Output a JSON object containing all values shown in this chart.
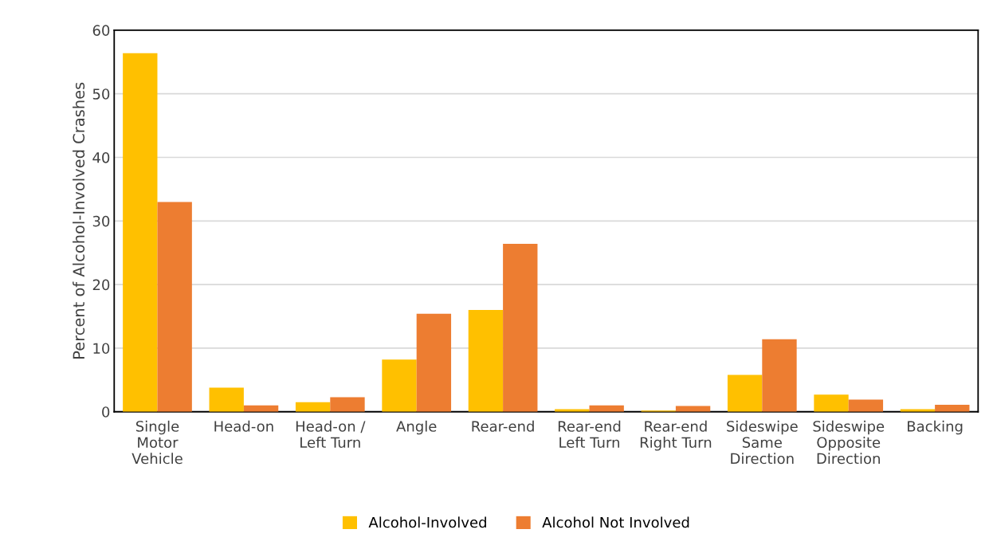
{
  "chart_data": {
    "type": "bar",
    "ylabel": "Percent of Alcohol-Involved Crashes",
    "categories": [
      "Single\nMotor\nVehicle",
      "Head-on",
      "Head-on /\nLeft Turn",
      "Angle",
      "Rear-end",
      "Rear-end\nLeft Turn",
      "Rear-end\nRight Turn",
      "Sideswipe\nSame\nDirection",
      "Sideswipe\nOpposite\nDirection",
      "Backing"
    ],
    "series": [
      {
        "name": "Alcohol-Involved",
        "color": "#ffc000",
        "values": [
          56.4,
          3.8,
          1.5,
          8.2,
          16.0,
          0.4,
          0.2,
          5.8,
          2.7,
          0.4
        ]
      },
      {
        "name": "Alcohol Not Involved",
        "color": "#ed7d31",
        "values": [
          33.0,
          1.0,
          2.3,
          15.4,
          26.4,
          1.0,
          0.9,
          11.4,
          1.9,
          1.1
        ]
      }
    ],
    "ylim": [
      0,
      60
    ],
    "yticks": [
      0,
      10,
      20,
      30,
      40,
      50,
      60
    ],
    "grid": "y",
    "legend": "bottom"
  }
}
